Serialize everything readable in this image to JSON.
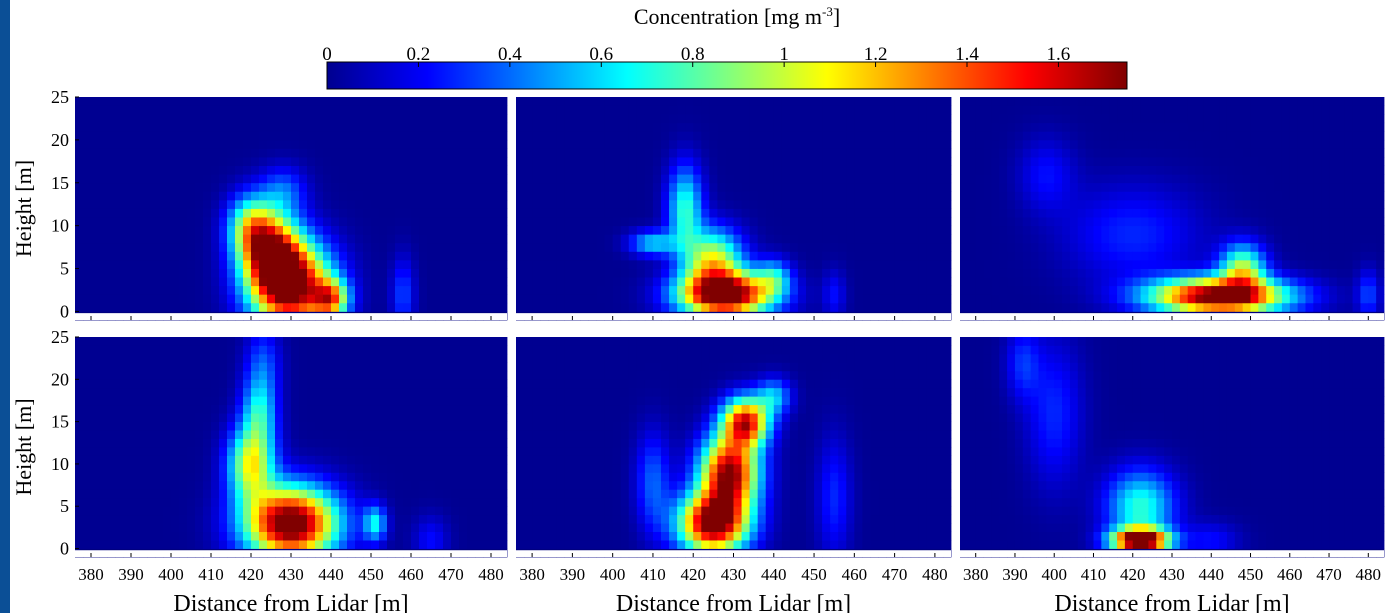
{
  "chart_data": {
    "type": "heatmap",
    "colorbar": {
      "title": "Concentration [mg m",
      "title_sup": "-3",
      "title_end": "]",
      "range": [
        0,
        1.75
      ],
      "ticks": [
        0,
        0.2,
        0.4,
        0.6,
        0.8,
        1,
        1.2,
        1.4,
        1.6
      ],
      "tick_labels": [
        "0",
        "0.2",
        "0.4",
        "0.6",
        "0.8",
        "1",
        "1.2",
        "1.4",
        "1.6"
      ]
    },
    "ylabel": "Height [m]",
    "xlabel": "Distance from Lidar [m]",
    "xlim": [
      376,
      484
    ],
    "ylim": [
      -1,
      25
    ],
    "x_ticks": [
      380,
      390,
      400,
      410,
      420,
      430,
      440,
      450,
      460,
      470,
      480
    ],
    "x_tick_labels": [
      "380",
      "390",
      "400",
      "410",
      "420",
      "430",
      "440",
      "450",
      "460",
      "470",
      "480"
    ],
    "y_ticks": [
      0,
      5,
      10,
      15,
      20,
      25
    ],
    "y_tick_labels": [
      "0",
      "5",
      "10",
      "15",
      "20",
      "25"
    ],
    "panels": [
      {
        "row": 0,
        "col": 0,
        "blobs": [
          {
            "x": 430,
            "y": 3,
            "sx": 7,
            "sy": 3.5,
            "amp": 1.8
          },
          {
            "x": 425,
            "y": 7,
            "sx": 5,
            "sy": 3,
            "amp": 1.3
          },
          {
            "x": 420,
            "y": 10,
            "sx": 4,
            "sy": 2.5,
            "amp": 0.8
          },
          {
            "x": 440,
            "y": 1.5,
            "sx": 3,
            "sy": 1.5,
            "amp": 1.0
          },
          {
            "x": 428,
            "y": 14,
            "sx": 4,
            "sy": 2,
            "amp": 0.35
          },
          {
            "x": 458,
            "y": 2,
            "sx": 2,
            "sy": 3,
            "amp": 0.3
          }
        ]
      },
      {
        "row": 0,
        "col": 1,
        "blobs": [
          {
            "x": 428,
            "y": 2,
            "sx": 8,
            "sy": 1.8,
            "amp": 1.9
          },
          {
            "x": 425,
            "y": 6,
            "sx": 5,
            "sy": 2.5,
            "amp": 1.0
          },
          {
            "x": 418,
            "y": 12,
            "sx": 3,
            "sy": 3.5,
            "amp": 0.7
          },
          {
            "x": 410,
            "y": 8,
            "sx": 4,
            "sy": 1,
            "amp": 0.55
          },
          {
            "x": 440,
            "y": 4,
            "sx": 3,
            "sy": 1.5,
            "amp": 0.5
          },
          {
            "x": 455,
            "y": 2,
            "sx": 2,
            "sy": 2,
            "amp": 0.2
          }
        ]
      },
      {
        "row": 0,
        "col": 2,
        "blobs": [
          {
            "x": 442,
            "y": 1.8,
            "sx": 12,
            "sy": 1.5,
            "amp": 1.85
          },
          {
            "x": 448,
            "y": 5,
            "sx": 4,
            "sy": 2,
            "amp": 0.9
          },
          {
            "x": 420,
            "y": 9,
            "sx": 12,
            "sy": 4,
            "amp": 0.25
          },
          {
            "x": 398,
            "y": 16,
            "sx": 5,
            "sy": 3,
            "amp": 0.2
          },
          {
            "x": 480,
            "y": 2,
            "sx": 2,
            "sy": 2,
            "amp": 0.3
          }
        ]
      },
      {
        "row": 1,
        "col": 0,
        "blobs": [
          {
            "x": 430,
            "y": 3,
            "sx": 8,
            "sy": 3,
            "amp": 1.9
          },
          {
            "x": 420,
            "y": 10,
            "sx": 4,
            "sy": 3,
            "amp": 1.0
          },
          {
            "x": 422,
            "y": 16,
            "sx": 3,
            "sy": 3,
            "amp": 0.6
          },
          {
            "x": 423,
            "y": 22,
            "sx": 3,
            "sy": 3,
            "amp": 0.3
          },
          {
            "x": 451,
            "y": 3,
            "sx": 2,
            "sy": 1.5,
            "amp": 0.6
          },
          {
            "x": 465,
            "y": 1,
            "sx": 3,
            "sy": 2,
            "amp": 0.2
          }
        ]
      },
      {
        "row": 1,
        "col": 1,
        "blobs": [
          {
            "x": 425,
            "y": 3,
            "sx": 6,
            "sy": 2.5,
            "amp": 1.8
          },
          {
            "x": 429,
            "y": 9,
            "sx": 5,
            "sy": 3,
            "amp": 1.7
          },
          {
            "x": 433,
            "y": 15,
            "sx": 4,
            "sy": 2,
            "amp": 1.5
          },
          {
            "x": 440,
            "y": 18,
            "sx": 3,
            "sy": 1.5,
            "amp": 0.5
          },
          {
            "x": 410,
            "y": 8,
            "sx": 3,
            "sy": 4,
            "amp": 0.35
          },
          {
            "x": 455,
            "y": 6,
            "sx": 3,
            "sy": 5,
            "amp": 0.25
          }
        ]
      },
      {
        "row": 1,
        "col": 2,
        "blobs": [
          {
            "x": 422,
            "y": 1,
            "sx": 5,
            "sy": 1,
            "amp": 1.9
          },
          {
            "x": 422,
            "y": 5,
            "sx": 6,
            "sy": 3,
            "amp": 0.7
          },
          {
            "x": 400,
            "y": 16,
            "sx": 5,
            "sy": 6,
            "amp": 0.25
          },
          {
            "x": 392,
            "y": 22,
            "sx": 3,
            "sy": 3,
            "amp": 0.25
          },
          {
            "x": 440,
            "y": 1,
            "sx": 5,
            "sy": 1.5,
            "amp": 0.2
          }
        ]
      }
    ]
  }
}
